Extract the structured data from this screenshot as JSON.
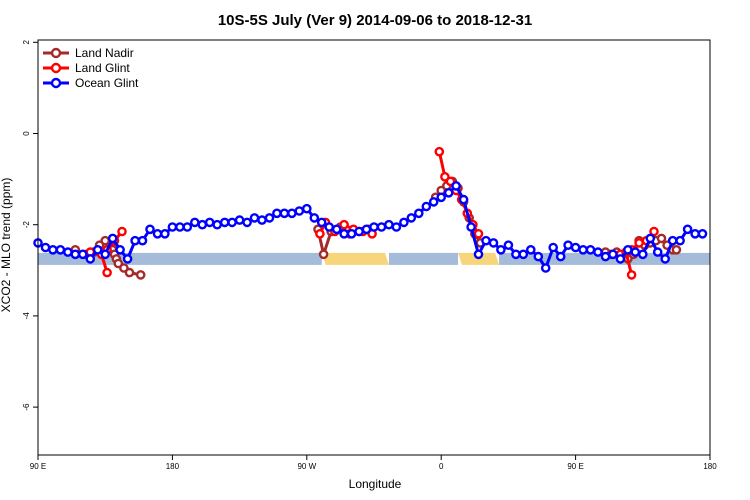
{
  "chart_data": {
    "type": "line",
    "title": "10S-5S July (Ver 9)   2014-09-06 to 2018-12-31",
    "xlabel": "Longitude",
    "ylabel": "XCO2 - MLO trend (ppm)",
    "xlim": [
      0,
      360
    ],
    "ylim": [
      -7.05,
      2.05
    ],
    "x_ticks": [
      {
        "value": 0,
        "label": "90 E"
      },
      {
        "value": 72,
        "label": "180"
      },
      {
        "value": 144,
        "label": "90 W"
      },
      {
        "value": 216,
        "label": "0"
      },
      {
        "value": 288,
        "label": "90 E"
      },
      {
        "value": 360,
        "label": "180"
      }
    ],
    "y_ticks": [
      {
        "value": 2,
        "label": "2"
      },
      {
        "value": 0,
        "label": "0"
      },
      {
        "value": -2,
        "label": "-2"
      },
      {
        "value": -4,
        "label": "-4"
      },
      {
        "value": -6,
        "label": "-6"
      }
    ],
    "legend_position": "top-left",
    "land_ocean_bar": {
      "y": -2.75,
      "ocean_color": "#a4bbd9",
      "land_color": "#f7d57a",
      "segments": [
        {
          "type": "ocean",
          "from": 0,
          "to": 152
        },
        {
          "type": "land",
          "from": 152,
          "to": 188
        },
        {
          "type": "ocean",
          "from": 188,
          "to": 225
        },
        {
          "type": "land",
          "from": 225,
          "to": 247
        },
        {
          "type": "ocean",
          "from": 247,
          "to": 360
        }
      ]
    },
    "series": [
      {
        "name": "Land Nadir",
        "color": "#a52a2a",
        "segments": [
          [
            [
              20,
              -2.55
            ],
            [
              26,
              -2.65
            ],
            [
              30,
              -2.6
            ],
            [
              33,
              -2.45
            ],
            [
              36,
              -2.35
            ]
          ],
          [
            [
              39,
              -2.45
            ],
            [
              40,
              -2.55
            ],
            [
              41,
              -2.65
            ],
            [
              42,
              -2.75
            ],
            [
              43,
              -2.85
            ],
            [
              46,
              -2.95
            ],
            [
              49,
              -3.05
            ],
            [
              55,
              -3.1
            ]
          ],
          [
            [
              150,
              -2.1
            ],
            [
              153,
              -2.65
            ],
            [
              157,
              -2.15
            ],
            [
              162,
              -2.05
            ],
            [
              167,
              -2.2
            ],
            [
              172,
              -2.15
            ],
            [
              177,
              -2.1
            ]
          ],
          [
            [
              213,
              -1.4
            ],
            [
              216,
              -1.25
            ],
            [
              219,
              -1.15
            ],
            [
              222,
              -1.05
            ],
            [
              225,
              -1.2
            ],
            [
              228,
              -1.5
            ],
            [
              231,
              -1.85
            ],
            [
              234,
              -2.2
            ],
            [
              237,
              -2.4
            ]
          ],
          [
            [
              304,
              -2.6
            ],
            [
              307,
              -2.65
            ],
            [
              310,
              -2.6
            ],
            [
              313,
              -2.7
            ],
            [
              316,
              -2.75
            ],
            [
              319,
              -2.65
            ],
            [
              322,
              -2.35
            ]
          ],
          [
            [
              325,
              -2.45
            ],
            [
              328,
              -2.4
            ],
            [
              331,
              -2.35
            ],
            [
              334,
              -2.3
            ],
            [
              337,
              -2.45
            ],
            [
              340,
              -2.55
            ],
            [
              342,
              -2.55
            ]
          ]
        ]
      },
      {
        "name": "Land Glint",
        "color": "#ff0000",
        "segments": [
          [
            [
              28,
              -2.6
            ],
            [
              34,
              -2.65
            ],
            [
              37,
              -3.05
            ]
          ],
          [
            [
              37,
              -2.55
            ],
            [
              41,
              -2.35
            ],
            [
              45,
              -2.15
            ]
          ],
          [
            [
              151,
              -2.2
            ],
            [
              154,
              -1.95
            ],
            [
              159,
              -2.15
            ],
            [
              164,
              -2.0
            ],
            [
              169,
              -2.1
            ],
            [
              174,
              -2.15
            ],
            [
              179,
              -2.2
            ]
          ],
          [
            [
              215,
              -0.4
            ],
            [
              218,
              -0.95
            ],
            [
              221,
              -1.05
            ],
            [
              224,
              -1.25
            ],
            [
              227,
              -1.45
            ],
            [
              230,
              -1.75
            ],
            [
              233,
              -2.0
            ],
            [
              236,
              -2.2
            ]
          ],
          [
            [
              312,
              -2.65
            ],
            [
              315,
              -2.6
            ],
            [
              318,
              -3.1
            ]
          ],
          [
            [
              318,
              -2.55
            ],
            [
              322,
              -2.4
            ],
            [
              326,
              -2.35
            ],
            [
              330,
              -2.15
            ]
          ]
        ]
      },
      {
        "name": "Ocean Glint",
        "color": "#0000ff",
        "segments": [
          [
            [
              0,
              -2.4
            ],
            [
              4,
              -2.5
            ],
            [
              8,
              -2.55
            ],
            [
              12,
              -2.55
            ],
            [
              16,
              -2.6
            ],
            [
              20,
              -2.65
            ],
            [
              24,
              -2.65
            ],
            [
              28,
              -2.75
            ],
            [
              32,
              -2.55
            ],
            [
              36,
              -2.65
            ],
            [
              40,
              -2.3
            ],
            [
              44,
              -2.55
            ],
            [
              48,
              -2.75
            ],
            [
              52,
              -2.35
            ],
            [
              56,
              -2.35
            ],
            [
              60,
              -2.1
            ],
            [
              64,
              -2.2
            ],
            [
              68,
              -2.2
            ],
            [
              72,
              -2.05
            ],
            [
              76,
              -2.05
            ],
            [
              80,
              -2.05
            ],
            [
              84,
              -1.95
            ],
            [
              88,
              -2.0
            ],
            [
              92,
              -1.95
            ],
            [
              96,
              -2.0
            ],
            [
              100,
              -1.95
            ],
            [
              104,
              -1.95
            ],
            [
              108,
              -1.9
            ],
            [
              112,
              -1.95
            ],
            [
              116,
              -1.85
            ],
            [
              120,
              -1.9
            ],
            [
              124,
              -1.85
            ],
            [
              128,
              -1.75
            ],
            [
              132,
              -1.75
            ],
            [
              136,
              -1.75
            ],
            [
              140,
              -1.7
            ],
            [
              144,
              -1.65
            ],
            [
              148,
              -1.85
            ],
            [
              152,
              -1.95
            ],
            [
              156,
              -2.05
            ],
            [
              160,
              -2.1
            ],
            [
              164,
              -2.2
            ],
            [
              168,
              -2.2
            ],
            [
              172,
              -2.15
            ],
            [
              176,
              -2.1
            ],
            [
              180,
              -2.05
            ],
            [
              184,
              -2.05
            ],
            [
              188,
              -2.0
            ],
            [
              192,
              -2.05
            ],
            [
              196,
              -1.95
            ],
            [
              200,
              -1.85
            ],
            [
              204,
              -1.75
            ],
            [
              208,
              -1.6
            ],
            [
              212,
              -1.5
            ],
            [
              216,
              -1.4
            ],
            [
              220,
              -1.3
            ],
            [
              224,
              -1.15
            ],
            [
              228,
              -1.45
            ],
            [
              232,
              -2.05
            ],
            [
              236,
              -2.65
            ],
            [
              240,
              -2.35
            ],
            [
              244,
              -2.4
            ],
            [
              248,
              -2.55
            ],
            [
              252,
              -2.45
            ],
            [
              256,
              -2.65
            ],
            [
              260,
              -2.65
            ],
            [
              264,
              -2.55
            ],
            [
              268,
              -2.7
            ],
            [
              272,
              -2.95
            ],
            [
              276,
              -2.5
            ],
            [
              280,
              -2.7
            ],
            [
              284,
              -2.45
            ],
            [
              288,
              -2.5
            ],
            [
              292,
              -2.55
            ],
            [
              296,
              -2.55
            ],
            [
              300,
              -2.6
            ],
            [
              304,
              -2.7
            ],
            [
              308,
              -2.65
            ],
            [
              312,
              -2.75
            ],
            [
              316,
              -2.55
            ],
            [
              320,
              -2.6
            ],
            [
              324,
              -2.65
            ],
            [
              328,
              -2.3
            ],
            [
              332,
              -2.6
            ],
            [
              336,
              -2.75
            ],
            [
              340,
              -2.35
            ],
            [
              344,
              -2.35
            ],
            [
              348,
              -2.1
            ],
            [
              352,
              -2.2
            ],
            [
              356,
              -2.2
            ]
          ]
        ]
      }
    ]
  }
}
